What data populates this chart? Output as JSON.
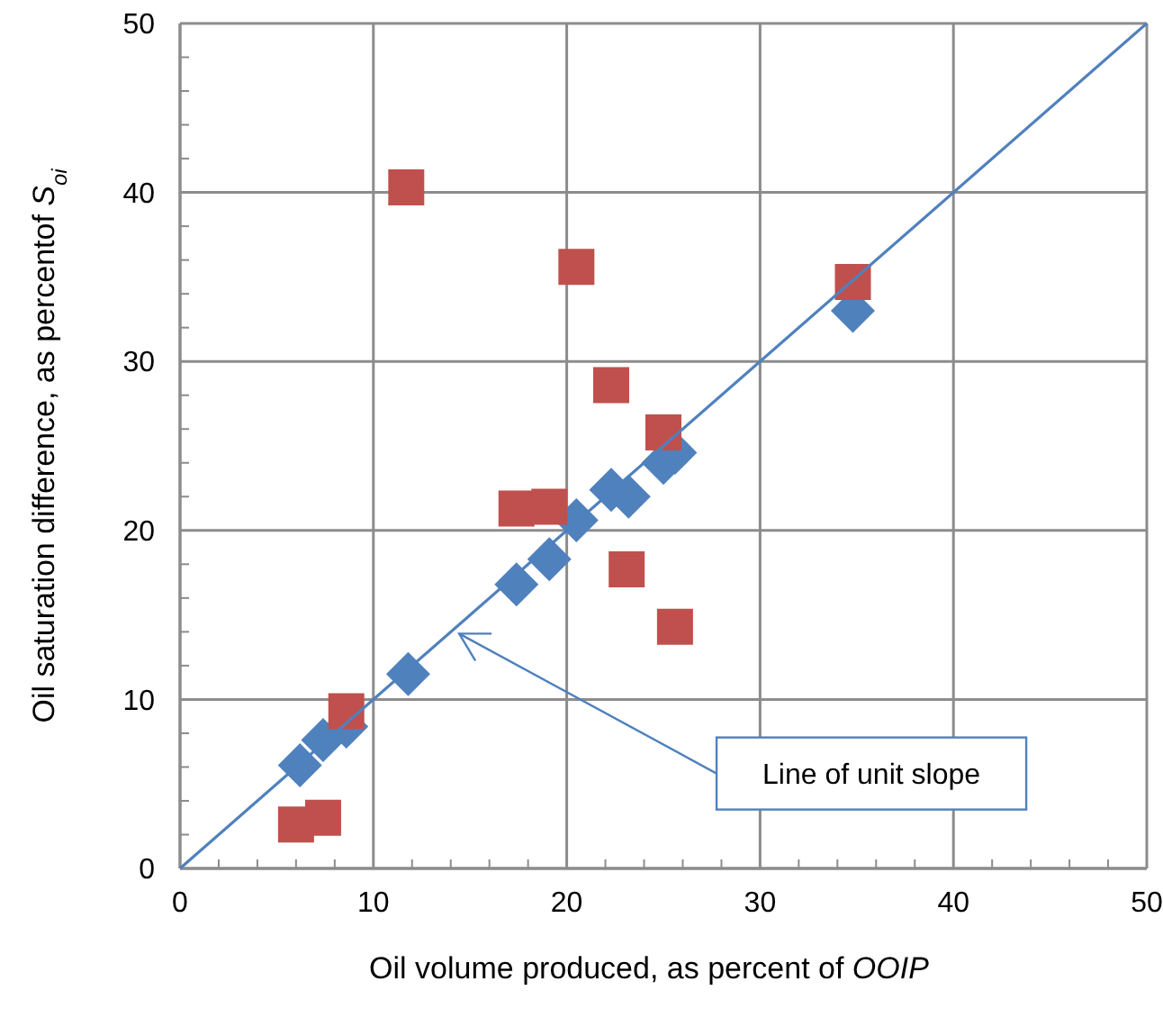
{
  "chart_data": {
    "type": "scatter",
    "xlabel": "Oil volume produced, as percent of OOIP",
    "ylabel": "Oil saturation difference, as percentof S$_{oi}$",
    "xlim": [
      0,
      50
    ],
    "ylim": [
      0,
      50
    ],
    "xticks": [
      0,
      10,
      20,
      30,
      40,
      50
    ],
    "yticks": [
      0,
      10,
      20,
      30,
      40,
      50
    ],
    "grid": true,
    "series": [
      {
        "marker": "diamond",
        "color": "#4f81bd",
        "x": [
          6.2,
          7.4,
          8.6,
          11.8,
          17.4,
          19.1,
          20.5,
          22.3,
          23.2,
          25.0,
          25.6,
          34.8
        ],
        "values": [
          6.1,
          7.6,
          8.4,
          11.5,
          16.8,
          18.3,
          20.6,
          22.4,
          22.0,
          24.0,
          24.6,
          33.0
        ]
      },
      {
        "marker": "square",
        "color": "#c0504d",
        "x": [
          6.0,
          7.4,
          8.6,
          11.7,
          20.5,
          22.3,
          25.0,
          17.4,
          19.1,
          23.1,
          25.6,
          34.8
        ],
        "values": [
          2.6,
          3.0,
          9.3,
          40.3,
          35.6,
          28.6,
          25.8,
          21.3,
          21.4,
          17.7,
          14.3,
          34.7
        ]
      },
      {
        "type": "line",
        "line_style": "solid",
        "color": "#4f81bd",
        "x": [
          0,
          50
        ],
        "values": [
          0,
          50
        ]
      }
    ],
    "annotations": [
      "Line of unit slope"
    ]
  }
}
